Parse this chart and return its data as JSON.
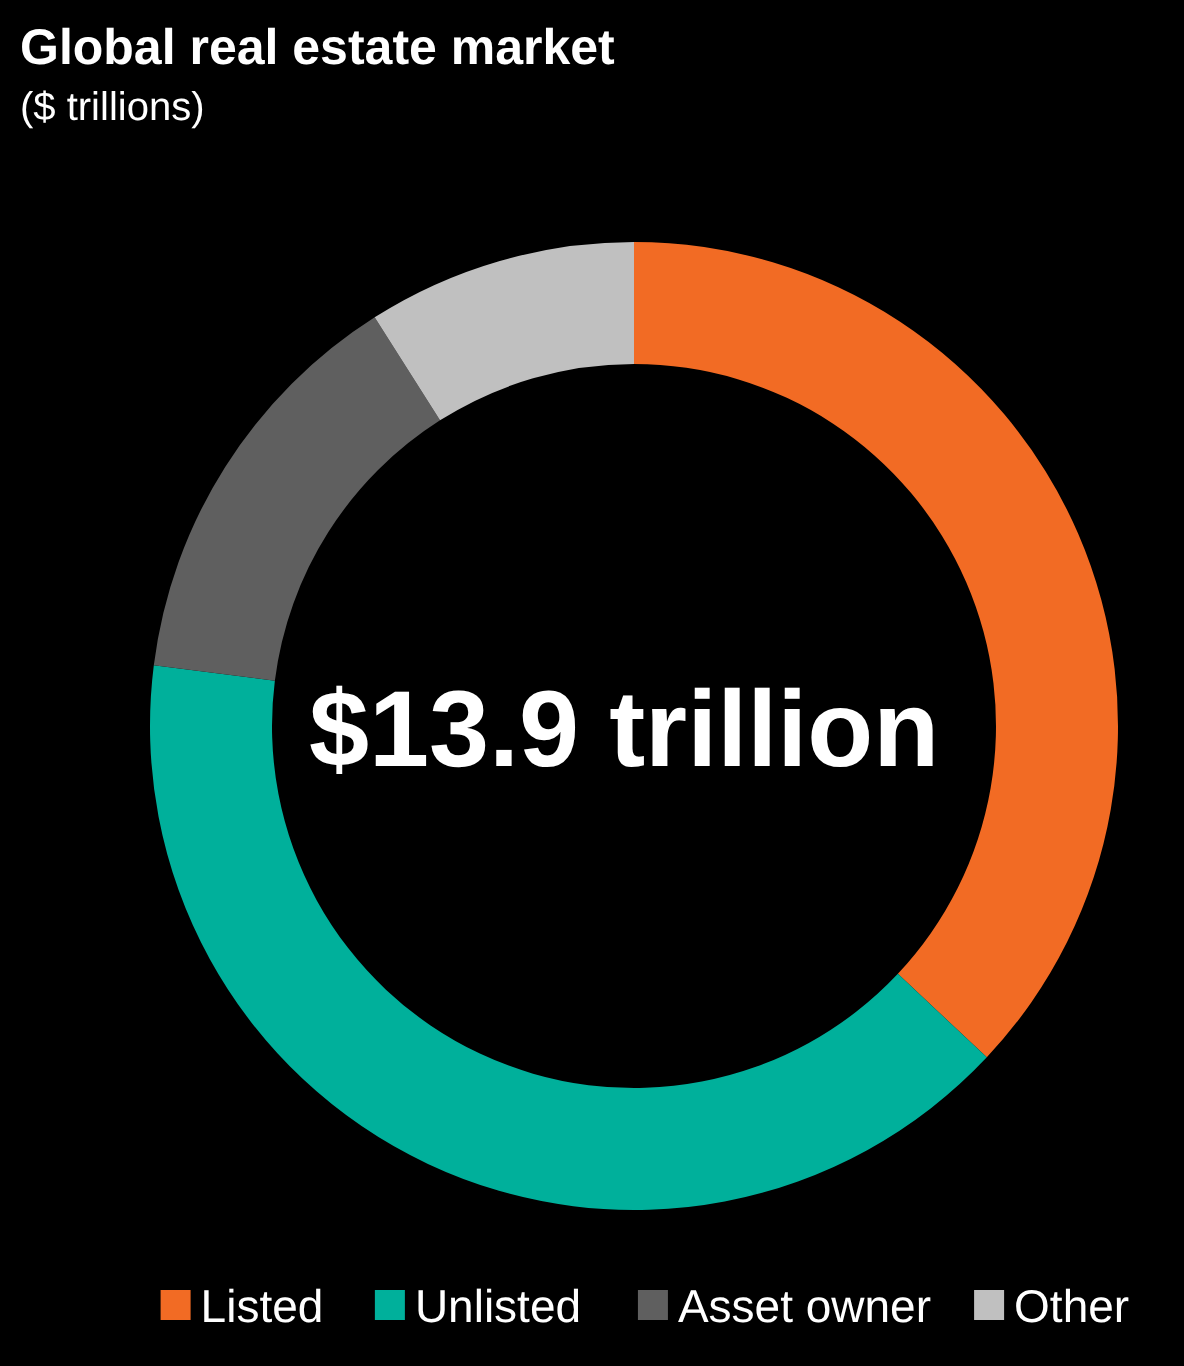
{
  "chart_data": {
    "type": "donut",
    "title": "Global real estate market",
    "subtitle": "($ trillions)",
    "categories": [
      "Listed",
      "Unlisted",
      "Asset owner",
      "Other"
    ],
    "values": [
      37,
      40,
      14,
      9
    ],
    "colors": [
      "#f26b24",
      "#00b09b",
      "#5f5f5f",
      "#c0c0c0"
    ],
    "annotations": [
      "$13.9 trillion"
    ],
    "legend": "bottom right"
  }
}
